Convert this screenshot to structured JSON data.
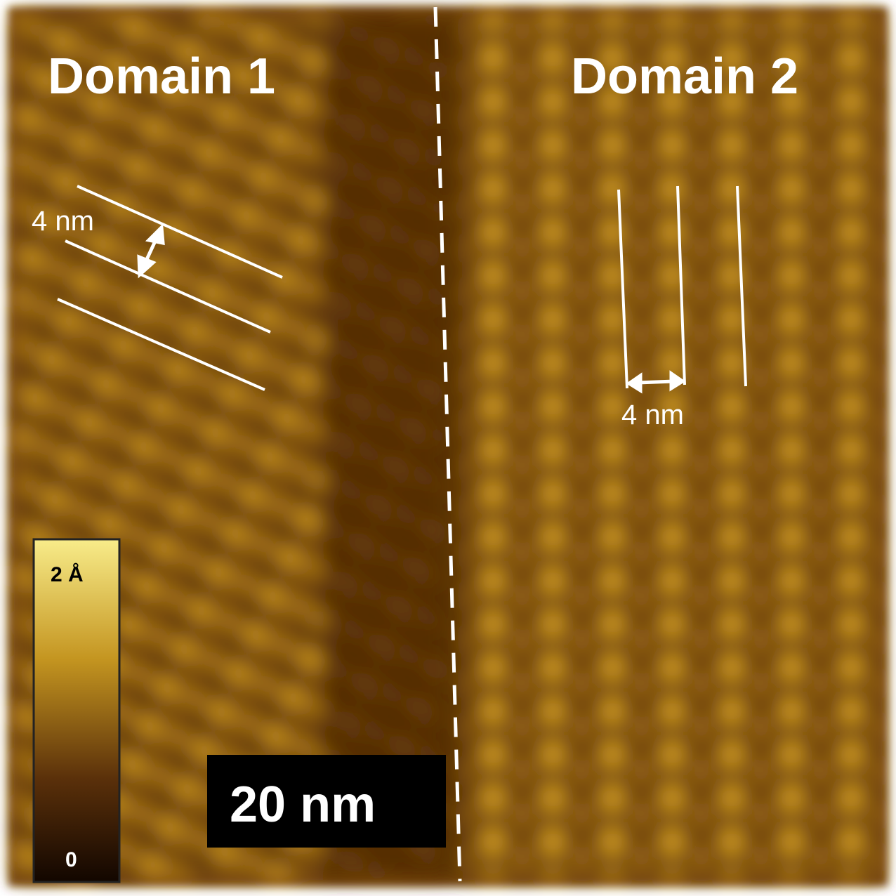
{
  "labels": {
    "domain_1": "Domain 1",
    "domain_2": "Domain 2"
  },
  "annotations": [
    {
      "text": "4 nm"
    },
    {
      "text": "4 nm"
    }
  ],
  "colorbar": {
    "max_label": "2 Å",
    "min_label": "0"
  },
  "scale_bar": {
    "label": "20 nm"
  }
}
